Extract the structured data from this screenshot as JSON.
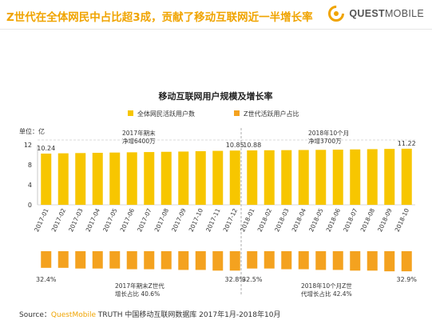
{
  "header": {
    "headline": "Z世代在全体网民中占比超3成，贡献了移动互联网近一半增长率",
    "logo": {
      "bold": "QUEST",
      "light": "MOBILE",
      "icon": "questmobile-logo-icon",
      "brand_color": "#f0a400"
    }
  },
  "source": {
    "label": "Source：",
    "brand": "QuestMobile",
    "text": " TRUTH 中国移动互联网数据库 2017年1月-2018年10月"
  },
  "chart_data": {
    "type": "bar",
    "title": "移动互联网用户规模及增长率",
    "unit_label": "单位：亿",
    "categories": [
      "2017-01",
      "2017-02",
      "2017-03",
      "2017-04",
      "2017-05",
      "2017-06",
      "2017-07",
      "2017-08",
      "2017-09",
      "2017-10",
      "2017-11",
      "2017-12",
      "2018-01",
      "2018-02",
      "2018-03",
      "2018-04",
      "2018-05",
      "2018-06",
      "2018-07",
      "2018-08",
      "2018-09",
      "2018-10"
    ],
    "colors": {
      "top": "#f7c600",
      "bottom": "#f4a21f"
    },
    "top_chart": {
      "series_name": "全体网民活跃用户数",
      "values": [
        10.24,
        10.3,
        10.35,
        10.4,
        10.45,
        10.5,
        10.55,
        10.6,
        10.65,
        10.72,
        10.79,
        10.85,
        10.88,
        10.91,
        10.93,
        10.96,
        10.99,
        11.03,
        11.08,
        11.13,
        11.18,
        11.22
      ],
      "ylim": [
        0,
        12
      ],
      "yticks": [
        0,
        4,
        8,
        12
      ],
      "grid": false,
      "data_labels": [
        {
          "index": 0,
          "text": "10.24"
        },
        {
          "index": 11,
          "text": "10.85"
        },
        {
          "index": 12,
          "text": "10.88"
        },
        {
          "index": 21,
          "text": "11.22"
        }
      ]
    },
    "bottom_chart": {
      "series_name": "Z世代活跃用户占比",
      "values": [
        32.4,
        32.4,
        32.5,
        32.5,
        32.5,
        32.6,
        32.6,
        32.6,
        32.7,
        32.7,
        32.8,
        32.8,
        32.5,
        32.5,
        32.6,
        32.6,
        32.7,
        32.7,
        32.8,
        32.8,
        32.9,
        32.9
      ],
      "data_labels": [
        {
          "index": 0,
          "text": "32.4%"
        },
        {
          "index": 11,
          "text": "32.8%"
        },
        {
          "index": 12,
          "text": "32.5%"
        },
        {
          "index": 21,
          "text": "32.9%"
        }
      ]
    },
    "legend": {
      "placement": "top-center"
    },
    "annotations": {
      "net_2017": [
        "2017年期末",
        "净增6400万"
      ],
      "net_2018": [
        "2018年10个月",
        "净增3700万"
      ],
      "z_2017": [
        "2017年期末Z世代",
        "增长占比 40.6%"
      ],
      "z_2018": [
        "2018年10个月Z世",
        "代增长占比 42.4%"
      ]
    }
  }
}
